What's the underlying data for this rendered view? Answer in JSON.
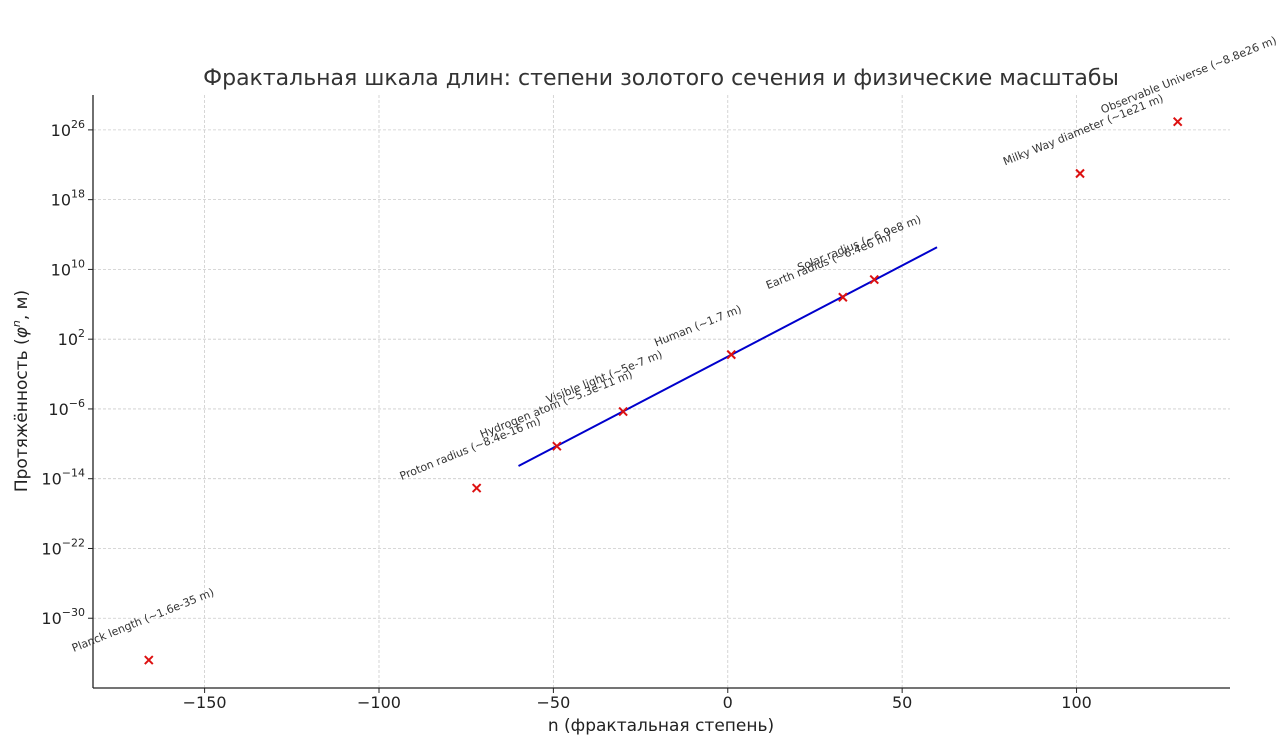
{
  "chart_data": {
    "type": "scatter",
    "title": "Фрактальная шкала длин: степени золотого сечения и физические масштабы",
    "xlabel": "n (фрактальная степень)",
    "ylabel_main": "Протяжённость (",
    "ylabel_sym": "φ",
    "ylabel_sup": "n",
    "ylabel_tail": ", м)",
    "xlim": [
      -182,
      144
    ],
    "ylog_lim": [
      -38,
      30
    ],
    "x_ticks": [
      {
        "value": -150,
        "label": "−150"
      },
      {
        "value": -100,
        "label": "−100"
      },
      {
        "value": -50,
        "label": "−50"
      },
      {
        "value": 0,
        "label": "0"
      },
      {
        "value": 50,
        "label": "50"
      },
      {
        "value": 100,
        "label": "100"
      }
    ],
    "y_ticks": [
      {
        "exp": 26,
        "base": "10",
        "sup": "26"
      },
      {
        "exp": 18,
        "base": "10",
        "sup": "18"
      },
      {
        "exp": 10,
        "base": "10",
        "sup": "10"
      },
      {
        "exp": 2,
        "base": "10",
        "sup": "2"
      },
      {
        "exp": -6,
        "base": "10",
        "sup": "−6"
      },
      {
        "exp": -14,
        "base": "10",
        "sup": "−14"
      },
      {
        "exp": -22,
        "base": "10",
        "sup": "−22"
      },
      {
        "exp": -30,
        "base": "10",
        "sup": "−30"
      }
    ],
    "grid": true,
    "line_series": {
      "x_start": -60,
      "x_end": 60,
      "base": 1.618034,
      "color": "#0000cc"
    },
    "points": [
      {
        "n": -166,
        "value": 1.6e-35,
        "label": "Planck length (~1.6e-35 m)"
      },
      {
        "n": -72,
        "value": 8.4e-16,
        "label": "Proton radius (~8.4e-16 m)"
      },
      {
        "n": -49,
        "value": 5.3e-11,
        "label": "Hydrogen atom (~5.3e-11 m)"
      },
      {
        "n": -30,
        "value": 5e-07,
        "label": "Visible light (~5e-7 m)"
      },
      {
        "n": 1,
        "value": 1.7,
        "label": "Human (~1.7 m)"
      },
      {
        "n": 33,
        "value": 6400000.0,
        "label": "Earth radius (~6.4e6 m)"
      },
      {
        "n": 42,
        "value": 690000000.0,
        "label": "Solar radius (~6.9e8 m)"
      },
      {
        "n": 101,
        "value": 1e+21,
        "label": "Milky Way diameter (~1e21 m)"
      },
      {
        "n": 129,
        "value": 8.8e+26,
        "label": "Observable Universe (~8.8e26 m)"
      }
    ],
    "marker_color": "#dd1111"
  }
}
